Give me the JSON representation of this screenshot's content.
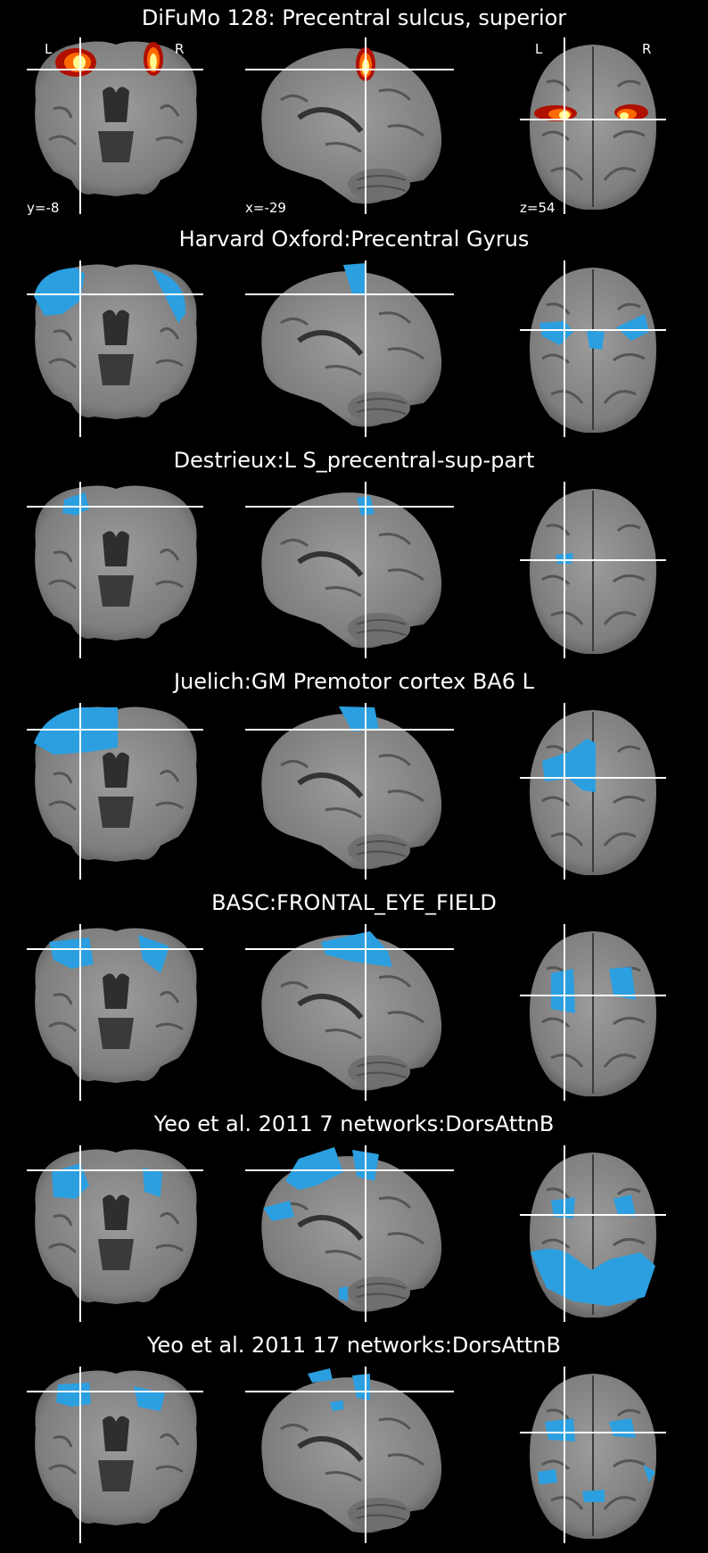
{
  "rows": [
    {
      "title": "DiFuMo 128: Precentral sulcus, superior",
      "overlay": "heat"
    },
    {
      "title": "Harvard Oxford:Precentral Gyrus",
      "overlay": "blue"
    },
    {
      "title": "Destrieux:L S_precentral-sup-part",
      "overlay": "blue"
    },
    {
      "title": "Juelich:GM Premotor cortex BA6 L",
      "overlay": "blue"
    },
    {
      "title": "BASC:FRONTAL_EYE_FIELD",
      "overlay": "blue"
    },
    {
      "title": "Yeo et al. 2011 7 networks:DorsAttnB",
      "overlay": "blue"
    },
    {
      "title": "Yeo et al. 2011 17 networks:DorsAttnB",
      "overlay": "blue"
    }
  ],
  "orientation": {
    "left": "L",
    "right": "R"
  },
  "coords": {
    "coronal": "y=-8",
    "sagittal": "x=-29",
    "axial": "z=54"
  },
  "colors": {
    "background": "#000000",
    "brain": "#8f8f8f",
    "overlay_blue": "#2b9fe0",
    "heat_outer": "#b01000",
    "heat_mid": "#ff6a00",
    "heat_core": "#fffa90",
    "crosshair": "#ffffff"
  }
}
